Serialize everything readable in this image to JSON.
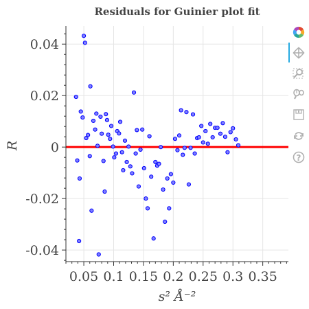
{
  "chart_data": {
    "type": "scatter",
    "title": "Residuals for Guinier plot fit",
    "xlabel": "s² Å⁻²",
    "ylabel": "R",
    "xlim": [
      0.02,
      0.393
    ],
    "ylim": [
      -0.0445,
      0.047
    ],
    "xticks": [
      0.05,
      0.1,
      0.15,
      0.2,
      0.25,
      0.3,
      0.35
    ],
    "xtick_labels": [
      "0.05",
      "0.1",
      "0.15",
      "0.2",
      "0.25",
      "0.3",
      "0.35"
    ],
    "yticks": [
      -0.04,
      -0.02,
      0,
      0.02,
      0.04
    ],
    "ytick_labels": [
      "-0.04",
      "-0.02",
      "0",
      "0.02",
      "0.04"
    ],
    "grid": true,
    "reference_line": {
      "y": 0,
      "color": "#ff0000"
    },
    "marker": {
      "fill": "#8080ff",
      "stroke": "#0000ff"
    },
    "points": [
      [
        0.037,
        0.0195
      ],
      [
        0.039,
        -0.0052
      ],
      [
        0.042,
        -0.0365
      ],
      [
        0.043,
        -0.0122
      ],
      [
        0.045,
        0.0138
      ],
      [
        0.048,
        0.0115
      ],
      [
        0.05,
        0.0432
      ],
      [
        0.052,
        0.0405
      ],
      [
        0.054,
        0.0035
      ],
      [
        0.057,
        0.0047
      ],
      [
        0.06,
        -0.0035
      ],
      [
        0.061,
        0.0236
      ],
      [
        0.063,
        -0.0247
      ],
      [
        0.066,
        0.0102
      ],
      [
        0.069,
        0.0068
      ],
      [
        0.071,
        0.013
      ],
      [
        0.073,
        0.0005
      ],
      [
        0.075,
        -0.0417
      ],
      [
        0.078,
        0.0118
      ],
      [
        0.08,
        0.0052
      ],
      [
        0.083,
        -0.0054
      ],
      [
        0.085,
        -0.0173
      ],
      [
        0.087,
        0.0128
      ],
      [
        0.089,
        0.0105
      ],
      [
        0.091,
        0.0048
      ],
      [
        0.094,
        0.0032
      ],
      [
        0.096,
        0.0082
      ],
      [
        0.099,
        0.0002
      ],
      [
        0.101,
        -0.004
      ],
      [
        0.104,
        -0.0025
      ],
      [
        0.106,
        0.0062
      ],
      [
        0.109,
        0.0053
      ],
      [
        0.111,
        0.0098
      ],
      [
        0.114,
        -0.002
      ],
      [
        0.116,
        -0.009
      ],
      [
        0.119,
        0.0025
      ],
      [
        0.122,
        -0.0058
      ],
      [
        0.125,
        0.0002
      ],
      [
        0.128,
        -0.0075
      ],
      [
        0.131,
        -0.0102
      ],
      [
        0.134,
        0.0212
      ],
      [
        0.137,
        -0.0025
      ],
      [
        0.139,
        0.0066
      ],
      [
        0.142,
        -0.0153
      ],
      [
        0.145,
        -0.001
      ],
      [
        0.148,
        0.0068
      ],
      [
        0.151,
        -0.0082
      ],
      [
        0.154,
        -0.02
      ],
      [
        0.157,
        -0.0238
      ],
      [
        0.16,
        0.0042
      ],
      [
        0.163,
        -0.0115
      ],
      [
        0.167,
        -0.0355
      ],
      [
        0.17,
        -0.0058
      ],
      [
        0.173,
        -0.0072
      ],
      [
        0.176,
        -0.0065
      ],
      [
        0.179,
        0.0
      ],
      [
        0.183,
        -0.0165
      ],
      [
        0.186,
        -0.029
      ],
      [
        0.19,
        -0.0122
      ],
      [
        0.193,
        -0.0238
      ],
      [
        0.196,
        -0.0105
      ],
      [
        0.2,
        -0.0138
      ],
      [
        0.203,
        0.0032
      ],
      [
        0.207,
        -0.0012
      ],
      [
        0.21,
        0.0045
      ],
      [
        0.213,
        0.0143
      ],
      [
        0.216,
        -0.003
      ],
      [
        0.219,
        -0.0003
      ],
      [
        0.222,
        0.0136
      ],
      [
        0.226,
        -0.0145
      ],
      [
        0.229,
        -0.0003
      ],
      [
        0.233,
        0.0127
      ],
      [
        0.236,
        -0.0025
      ],
      [
        0.24,
        0.0035
      ],
      [
        0.243,
        0.0038
      ],
      [
        0.247,
        0.0082
      ],
      [
        0.25,
        0.0018
      ],
      [
        0.254,
        0.0062
      ],
      [
        0.258,
        0.0013
      ],
      [
        0.262,
        0.009
      ],
      [
        0.266,
        0.0038
      ],
      [
        0.27,
        0.0075
      ],
      [
        0.274,
        0.0075
      ],
      [
        0.279,
        0.0052
      ],
      [
        0.283,
        0.0093
      ],
      [
        0.287,
        0.004
      ],
      [
        0.291,
        -0.002
      ],
      [
        0.296,
        0.0058
      ],
      [
        0.3,
        0.0073
      ],
      [
        0.305,
        0.003
      ],
      [
        0.309,
        0.0007
      ]
    ]
  },
  "toolbar": {
    "tools": [
      "bokeh-logo-icon",
      "pan-icon",
      "box-zoom-icon",
      "wheel-zoom-icon",
      "save-icon",
      "reset-icon",
      "help-icon"
    ],
    "active_color": "#26aae1",
    "icon_color": "#b0b0b0"
  }
}
